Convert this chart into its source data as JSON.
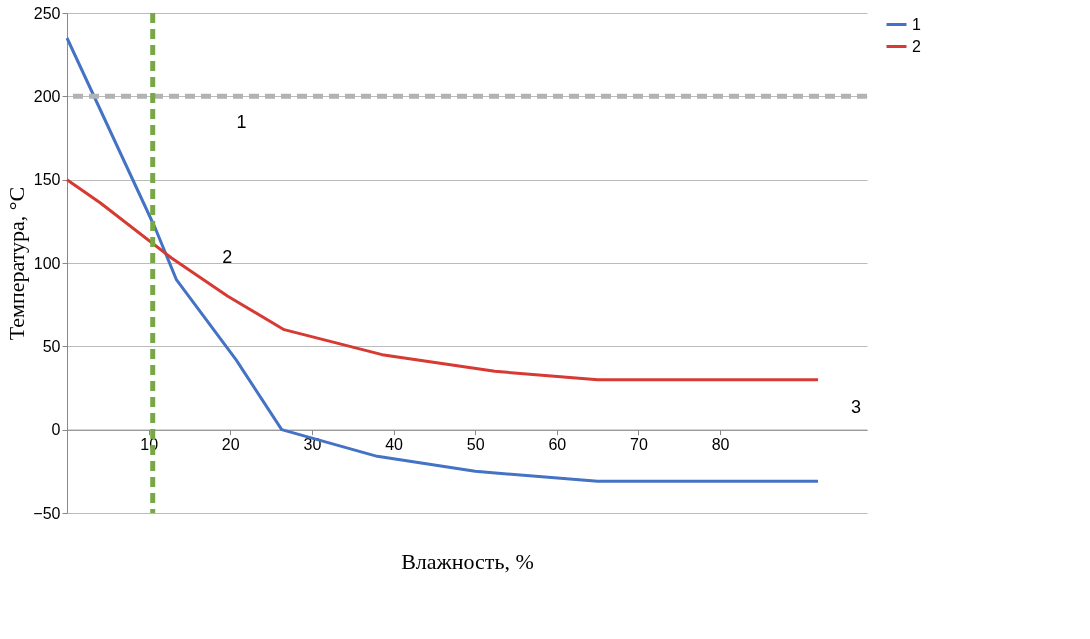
{
  "chart_data": {
    "type": "line",
    "xlabel": "Влажность, %",
    "ylabel": "Температура, °C",
    "xlim": [
      0,
      98
    ],
    "xticks": [
      10,
      20,
      30,
      40,
      50,
      60,
      70,
      80
    ],
    "ylim": [
      -50,
      250
    ],
    "yticks": [
      -50,
      0,
      50,
      100,
      150,
      200,
      250
    ],
    "grid": "y",
    "legend": "right",
    "marker": "none",
    "line_style": "solid",
    "series": [
      {
        "name": "1",
        "color": "#4472c4",
        "x": [
          0,
          10.8,
          13.4,
          20.7,
          26.3,
          38,
          50,
          65,
          92
        ],
        "values": [
          235,
          121,
          90,
          42,
          0,
          -16,
          -25,
          -31,
          -31
        ]
      },
      {
        "name": "2",
        "color": "#d63a32",
        "x": [
          0,
          4.1,
          12.8,
          19.7,
          26.6,
          38.6,
          52.4,
          65,
          92
        ],
        "values": [
          150,
          136,
          103,
          80,
          60,
          45,
          35,
          30,
          30
        ]
      }
    ],
    "ref_lines": [
      {
        "axis": "y",
        "value": 200,
        "color": "#b3b3b3",
        "line_style": "dashed"
      },
      {
        "axis": "x",
        "value": 10.5,
        "color": "#77a843",
        "line_style": "dashed"
      }
    ],
    "annotations": [
      "1",
      "2",
      "3"
    ]
  }
}
